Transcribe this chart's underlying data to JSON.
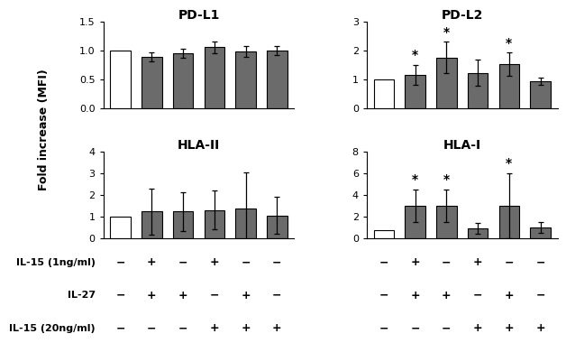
{
  "panels": [
    {
      "title": "PD-L1",
      "ylim": [
        0,
        1.5
      ],
      "yticks": [
        0.0,
        0.5,
        1.0,
        1.5
      ],
      "values": [
        1.0,
        0.88,
        0.95,
        1.05,
        0.98,
        1.0
      ],
      "errors": [
        0.0,
        0.08,
        0.08,
        0.1,
        0.1,
        0.08
      ],
      "stars": [
        false,
        false,
        false,
        false,
        false,
        false
      ]
    },
    {
      "title": "PD-L2",
      "ylim": [
        0,
        3
      ],
      "yticks": [
        0,
        1,
        2,
        3
      ],
      "values": [
        1.0,
        1.15,
        1.75,
        1.22,
        1.52,
        0.92
      ],
      "errors": [
        0.0,
        0.35,
        0.55,
        0.45,
        0.4,
        0.12
      ],
      "stars": [
        false,
        true,
        true,
        false,
        true,
        false
      ]
    },
    {
      "title": "HLA-II",
      "ylim": [
        0,
        4
      ],
      "yticks": [
        0,
        1,
        2,
        3,
        4
      ],
      "values": [
        1.0,
        1.22,
        1.22,
        1.3,
        1.38,
        1.05
      ],
      "errors": [
        0.0,
        1.05,
        0.9,
        0.9,
        1.65,
        0.85
      ],
      "stars": [
        false,
        false,
        false,
        false,
        false,
        false
      ]
    },
    {
      "title": "HLA-I",
      "ylim": [
        0,
        8
      ],
      "yticks": [
        0,
        2,
        4,
        6,
        8
      ],
      "values": [
        0.7,
        3.0,
        3.0,
        0.9,
        3.0,
        1.0
      ],
      "errors": [
        0.0,
        1.5,
        1.5,
        0.5,
        3.0,
        0.5
      ],
      "stars": [
        false,
        true,
        true,
        false,
        true,
        false
      ]
    }
  ],
  "bar_colors": [
    "white",
    "#6b6b6b",
    "#6b6b6b",
    "#6b6b6b",
    "#6b6b6b",
    "#6b6b6b"
  ],
  "bar_edge_color": "black",
  "bar_width": 0.65,
  "xlabel_rows": [
    "IL-15 (1ng/ml)",
    "IL-27",
    "IL-15 (20ng/ml)"
  ],
  "xlabel_signs": [
    [
      "−",
      "+",
      "−",
      "+",
      "−",
      "−"
    ],
    [
      "−",
      "+",
      "+",
      "−",
      "+",
      "−"
    ],
    [
      "−",
      "−",
      "−",
      "+",
      "+",
      "+"
    ]
  ],
  "ylabel": "Fold increase (MFI)",
  "background_color": "white",
  "star_fontsize": 10,
  "title_fontsize": 10,
  "label_fontsize": 8,
  "tick_fontsize": 8
}
